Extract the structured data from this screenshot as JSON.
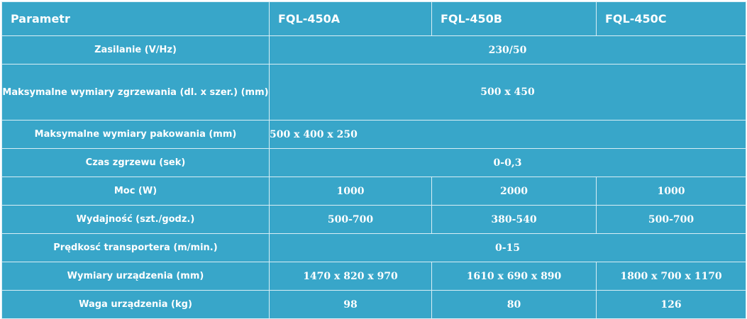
{
  "table": {
    "headers": [
      "Parametr",
      "FQL-450A",
      "FQL-450B",
      "FQL-450C"
    ],
    "rows": [
      {
        "label": "Zasilanie (V/Hz)",
        "value": "230/50"
      },
      {
        "label": "Maksymalne wymiary zgrzewania (dl. x szer.) (mm)",
        "value": "500 x 450"
      },
      {
        "label": "Maksymalne wymiary pakowania (mm)",
        "value": "500 x 400 x 250"
      },
      {
        "label": "Czas zgrzewu (sek)",
        "value": "0-0,3"
      },
      {
        "label": "Moc (W)",
        "values": [
          "1000",
          "2000",
          "1000"
        ]
      },
      {
        "label": "Wydajność (szt./godz.)",
        "values": [
          "500-700",
          "380-540",
          "500-700"
        ]
      },
      {
        "label": "Prędkosć transportera (m/min.)",
        "value": "0-15"
      },
      {
        "label": "Wymiary urządzenia (mm)",
        "values": [
          "1470 x 820 x 970",
          "1610 x 690 x 890",
          "1800 x 700 x 1170"
        ]
      },
      {
        "label": "Waga urządzenia (kg)",
        "values": [
          "98",
          "80",
          "126"
        ]
      }
    ]
  },
  "colors": {
    "cell_background": "#38a6c9",
    "border": "#d9eef5",
    "text": "#ffffff"
  }
}
